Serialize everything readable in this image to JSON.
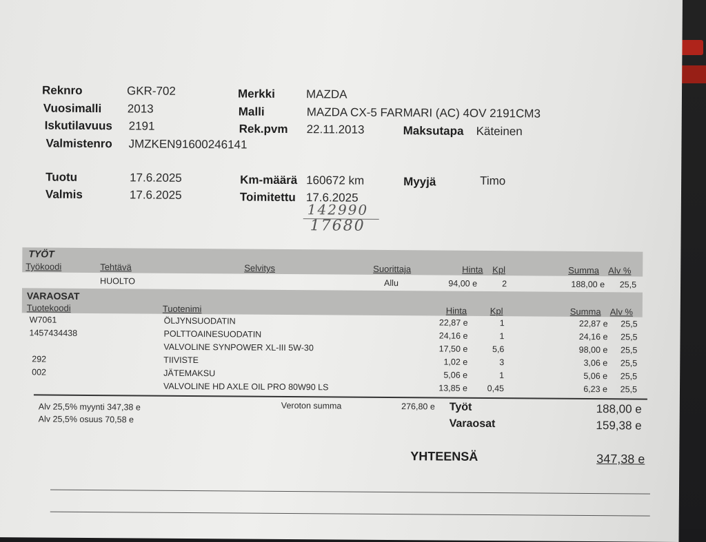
{
  "vehicle": {
    "reknro_label": "Reknro",
    "reknro": "GKR-702",
    "vuosimalli_label": "Vuosimalli",
    "vuosimalli": "2013",
    "iskutilavuus_label": "Iskutilavuus",
    "iskutilavuus": "2191",
    "valmistenro_label": "Valmistenro",
    "valmistenro": "JMZKEN91600246141",
    "merkki_label": "Merkki",
    "merkki": "MAZDA",
    "malli_label": "Malli",
    "malli": "MAZDA CX-5 FARMARI (AC) 4OV 2191CM3",
    "rekpvm_label": "Rek.pvm",
    "rekpvm": "22.11.2013",
    "maksutapa_label": "Maksutapa",
    "maksutapa": "Käteinen"
  },
  "order": {
    "tuotu_label": "Tuotu",
    "tuotu": "17.6.2025",
    "valmis_label": "Valmis",
    "valmis": "17.6.2025",
    "km_label": "Km-määrä",
    "km": "160672 km",
    "toimitettu_label": "Toimitettu",
    "toimitettu": "17.6.2025",
    "myyja_label": "Myyjä",
    "myyja": "Timo"
  },
  "handwritten": {
    "line1": "142990",
    "line2": "17680"
  },
  "tyot": {
    "title": "TYÖT",
    "headers": {
      "tyokoodi": "Työkoodi",
      "tehtava": "Tehtävä",
      "selvitys": "Selvitys",
      "suorittaja": "Suorittaja",
      "hinta": "Hinta",
      "kpl": "Kpl",
      "summa": "Summa",
      "alv": "Alv %"
    },
    "rows": [
      {
        "tyokoodi": "",
        "tehtava": "HUOLTO",
        "selvitys": "",
        "suorittaja": "Allu",
        "hinta": "94,00 e",
        "kpl": "2",
        "summa": "188,00 e",
        "alv": "25,5"
      }
    ]
  },
  "varaosat": {
    "title": "VARAOSAT",
    "headers": {
      "tuotekoodi": "Tuotekoodi",
      "tuotenimi": "Tuotenimi",
      "hinta": "Hinta",
      "kpl": "Kpl",
      "summa": "Summa",
      "alv": "Alv %"
    },
    "rows": [
      {
        "tuotekoodi": "W7061",
        "tuotenimi": "ÖLJYNSUODATIN",
        "hinta": "22,87 e",
        "kpl": "1",
        "summa": "22,87 e",
        "alv": "25,5"
      },
      {
        "tuotekoodi": "1457434438",
        "tuotenimi": "POLTTOAINESUODATIN",
        "hinta": "24,16 e",
        "kpl": "1",
        "summa": "24,16 e",
        "alv": "25,5"
      },
      {
        "tuotekoodi": "",
        "tuotenimi": "VALVOLINE SYNPOWER XL-III 5W-30",
        "hinta": "17,50 e",
        "kpl": "5,6",
        "summa": "98,00 e",
        "alv": "25,5"
      },
      {
        "tuotekoodi": "292",
        "tuotenimi": "TIIVISTE",
        "hinta": "1,02 e",
        "kpl": "3",
        "summa": "3,06 e",
        "alv": "25,5"
      },
      {
        "tuotekoodi": "002",
        "tuotenimi": "JÄTEMAKSU",
        "hinta": "5,06 e",
        "kpl": "1",
        "summa": "5,06 e",
        "alv": "25,5"
      },
      {
        "tuotekoodi": "",
        "tuotenimi": "VALVOLINE HD AXLE OIL PRO 80W90 LS",
        "hinta": "13,85 e",
        "kpl": "0,45",
        "summa": "6,23 e",
        "alv": "25,5"
      }
    ]
  },
  "totals": {
    "alv_myynti": "Alv 25,5% myynti 347,38 e",
    "alv_osuus": "Alv 25,5% osuus 70,58 e",
    "veroton_label": "Veroton summa",
    "veroton": "276,80 e",
    "tyot_label": "Työt",
    "tyot": "188,00 e",
    "varaosat_label": "Varaosat",
    "varaosat": "159,38 e",
    "yhteensa_label": "YHTEENSÄ",
    "yhteensa": "347,38 e"
  }
}
